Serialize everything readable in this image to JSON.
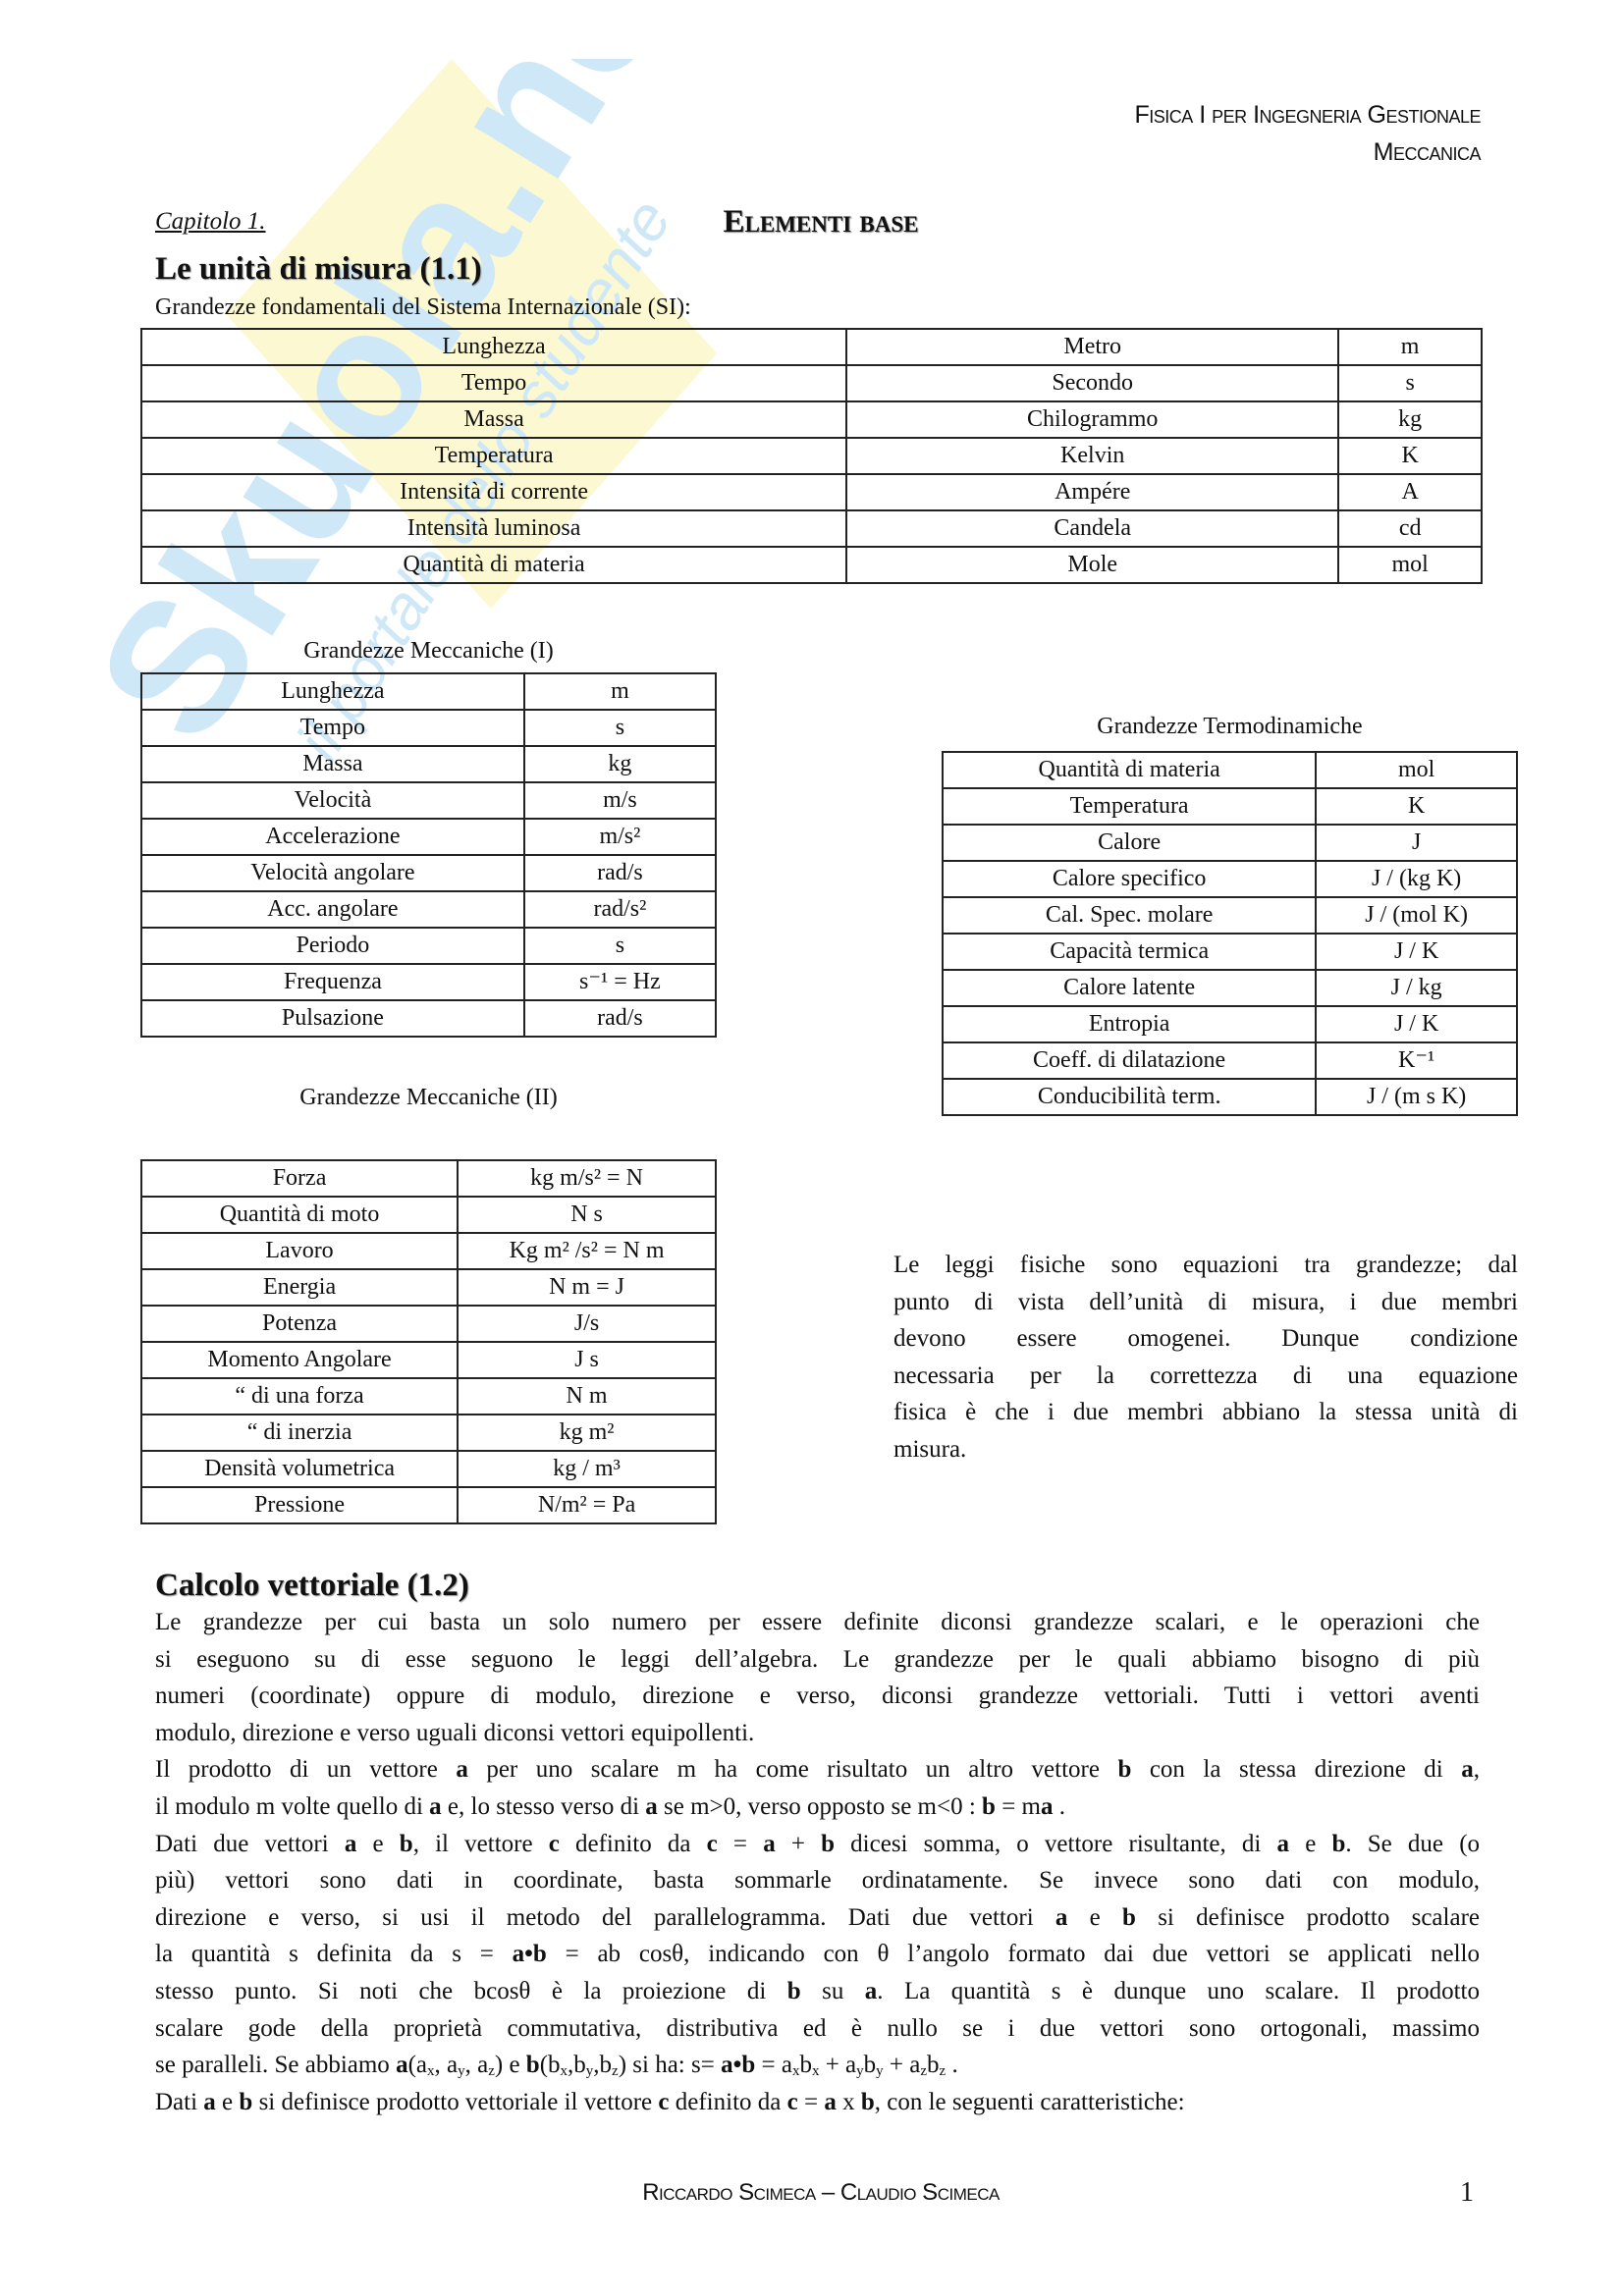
{
  "watermark": {
    "brand": "Skuola.net",
    "tagline": "il portale dello studente",
    "colors": {
      "blue": "#cfe8f7",
      "yellow": "#fbf6c6"
    }
  },
  "header": {
    "line1": "Fisica I per Ingegneria Gestionale",
    "line2": "Meccanica"
  },
  "chapter": {
    "label": "Capitolo 1.",
    "title": "Elementi base"
  },
  "section1": {
    "title": "Le unità di misura (1.1)",
    "subtitle": "Grandezze fondamentali del Sistema Internazionale (SI):",
    "si_table": [
      [
        "Lunghezza",
        "Metro",
        "m"
      ],
      [
        "Tempo",
        "Secondo",
        "s"
      ],
      [
        "Massa",
        "Chilogrammo",
        "kg"
      ],
      [
        "Temperatura",
        "Kelvin",
        "K"
      ],
      [
        "Intensità di corrente",
        "Ampére",
        "A"
      ],
      [
        "Intensità luminosa",
        "Candela",
        "cd"
      ],
      [
        "Quantità di materia",
        "Mole",
        "mol"
      ]
    ],
    "mech1": {
      "title": "Grandezze Meccaniche (I)",
      "rows": [
        [
          "Lunghezza",
          "m"
        ],
        [
          "Tempo",
          "s"
        ],
        [
          "Massa",
          "kg"
        ],
        [
          "Velocità",
          "m/s"
        ],
        [
          "Accelerazione",
          "m/s²"
        ],
        [
          "Velocità angolare",
          "rad/s"
        ],
        [
          "Acc. angolare",
          "rad/s²"
        ],
        [
          "Periodo",
          "s"
        ],
        [
          "Frequenza",
          "s⁻¹ = Hz"
        ],
        [
          "Pulsazione",
          "rad/s"
        ]
      ]
    },
    "mech2": {
      "title": "Grandezze Meccaniche (II)",
      "rows": [
        [
          "Forza",
          "kg m/s² = N"
        ],
        [
          "Quantità di moto",
          "N s"
        ],
        [
          "Lavoro",
          "Kg m² /s² = N m"
        ],
        [
          "Energia",
          "N m = J"
        ],
        [
          "Potenza",
          "J/s"
        ],
        [
          "Momento Angolare",
          "J s"
        ],
        [
          "“  di una forza",
          "N m"
        ],
        [
          "“     di inerzia",
          "kg m²"
        ],
        [
          "Densità volumetrica",
          "kg / m³"
        ],
        [
          "Pressione",
          "N/m² = Pa"
        ]
      ]
    },
    "thermo": {
      "title": "Grandezze Termodinamiche",
      "rows": [
        [
          "Quantità di materia",
          "mol"
        ],
        [
          "Temperatura",
          "K"
        ],
        [
          "Calore",
          "J"
        ],
        [
          "Calore specifico",
          "J / (kg K)"
        ],
        [
          "Cal. Spec. molare",
          "J / (mol K)"
        ],
        [
          "Capacità termica",
          "J / K"
        ],
        [
          "Calore latente",
          "J / kg"
        ],
        [
          "Entropia",
          "J / K"
        ],
        [
          "Coeff. di dilatazione",
          "K⁻¹"
        ],
        [
          "Conducibilità term.",
          "J / (m s K)"
        ]
      ]
    },
    "note_lines": [
      {
        "j": true,
        "s": [
          "Le leggi fisiche sono equazioni tra grandezze;  dal"
        ]
      },
      {
        "j": true,
        "s": [
          "punto di vista dell’unità di misura, i due membri"
        ]
      },
      {
        "j": true,
        "s": [
          "devono essere omogenei. Dunque condizione"
        ]
      },
      {
        "j": true,
        "s": [
          "necessaria per la correttezza di una equazione"
        ]
      },
      {
        "j": true,
        "s": [
          "fisica è che i due membri abbiano la stessa unità di"
        ]
      },
      {
        "j": false,
        "s": [
          "misura."
        ]
      }
    ]
  },
  "section2": {
    "title": "Calcolo vettoriale (1.2)",
    "lines": [
      {
        "j": true,
        "s": [
          "Le grandezze per cui basta un solo numero per essere definite diconsi grandezze scalari, e le operazioni che"
        ]
      },
      {
        "j": true,
        "s": [
          "si eseguono su di esse seguono le leggi dell’algebra. Le grandezze per le quali abbiamo bisogno di più"
        ]
      },
      {
        "j": true,
        "s": [
          "numeri (coordinate) oppure di modulo, direzione e verso, diconsi grandezze vettoriali. Tutti i vettori aventi"
        ]
      },
      {
        "j": false,
        "s": [
          "modulo, direzione e verso uguali diconsi vettori equipollenti."
        ]
      },
      {
        "j": true,
        "s": [
          "Il prodotto di un vettore ",
          {
            "b": "a"
          },
          " per uno scalare m ha come risultato un altro vettore ",
          {
            "b": "b"
          },
          " con la stessa direzione di ",
          {
            "b": "a"
          },
          ","
        ]
      },
      {
        "j": false,
        "s": [
          "il modulo m volte quello di ",
          {
            "b": "a"
          },
          " e, lo stesso verso di ",
          {
            "b": "a"
          },
          " se m>0, verso opposto se m<0 :   ",
          {
            "b": "b"
          },
          " = m",
          {
            "b": "a"
          },
          " ."
        ]
      },
      {
        "j": true,
        "s": [
          "Dati due vettori ",
          {
            "b": "a"
          },
          " e ",
          {
            "b": "b"
          },
          ", il vettore ",
          {
            "b": "c"
          },
          " definito da ",
          {
            "b": "c"
          },
          " = ",
          {
            "b": "a"
          },
          " + ",
          {
            "b": "b"
          },
          " dicesi somma, o vettore risultante, di ",
          {
            "b": "a"
          },
          " e ",
          {
            "b": "b"
          },
          ". Se due (o"
        ]
      },
      {
        "j": true,
        "s": [
          "più) vettori sono dati in coordinate, basta sommarle ordinatamente. Se invece sono dati con modulo,"
        ]
      },
      {
        "j": true,
        "s": [
          "direzione e verso, si usi il metodo del parallelogramma.  Dati due    vettori ",
          {
            "b": "a"
          },
          " e ",
          {
            "b": "b"
          },
          " si definisce prodotto scalare"
        ]
      },
      {
        "j": true,
        "s": [
          "la quantità s definita da s = ",
          {
            "b": "a•b"
          },
          " = ab cosθ, indicando con θ l’angolo formato dai due vettori se applicati nello"
        ]
      },
      {
        "j": true,
        "s": [
          "stesso punto. Si noti che bcosθ è la proiezione di ",
          {
            "b": "b"
          },
          " su ",
          {
            "b": "a"
          },
          ". La quantità s è dunque uno scalare. Il prodotto"
        ]
      },
      {
        "j": true,
        "s": [
          "scalare gode della proprietà commutativa, distributiva ed è nullo se i due vettori sono ortogonali, massimo"
        ]
      },
      {
        "j": false,
        "s": [
          "se paralleli. Se abbiamo ",
          {
            "b": "a"
          },
          "(a",
          {
            "sub": "x"
          },
          ", a",
          {
            "sub": "y"
          },
          ", a",
          {
            "sub": "z"
          },
          ") e ",
          {
            "b": "b"
          },
          "(b",
          {
            "sub": "x"
          },
          ",b",
          {
            "sub": "y"
          },
          ",b",
          {
            "sub": "z"
          },
          ") si ha: s= ",
          {
            "b": "a•b"
          },
          " = a",
          {
            "sub": "x"
          },
          "b",
          {
            "sub": "x"
          },
          " + a",
          {
            "sub": "y"
          },
          "b",
          {
            "sub": "y"
          },
          " + a",
          {
            "sub": "z"
          },
          "b",
          {
            "sub": "z"
          },
          " ."
        ]
      },
      {
        "j": false,
        "s": [
          "Dati ",
          {
            "b": "a"
          },
          " e ",
          {
            "b": "b"
          },
          " si definisce prodotto vettoriale il vettore ",
          {
            "b": "c"
          },
          " definito da ",
          {
            "b": "c"
          },
          " = ",
          {
            "b": "a"
          },
          " x ",
          {
            "b": "b"
          },
          ", con le seguenti caratteristiche:"
        ]
      }
    ]
  },
  "footer": {
    "authors": "Riccardo Scimeca – Claudio Scimeca",
    "page": "1"
  }
}
